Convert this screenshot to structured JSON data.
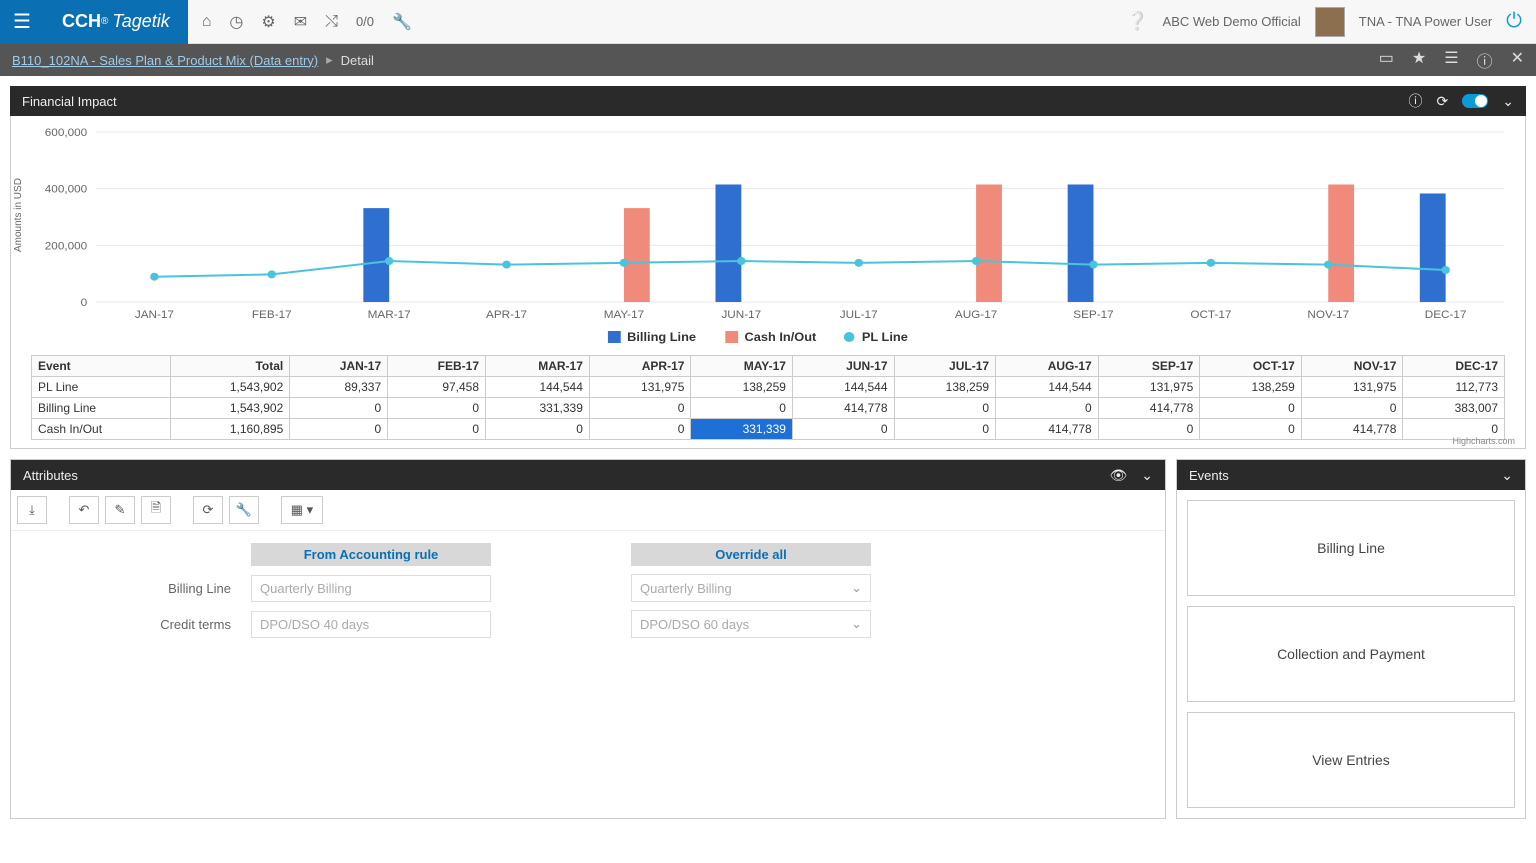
{
  "logo": {
    "brand_prefix": "CCH",
    "brand_suffix": "Tagetik",
    "reg": "®"
  },
  "topbar_counter": "0/0",
  "company": "ABC Web Demo Official",
  "user": "TNA - TNA Power User",
  "breadcrumb": {
    "link": "B110_102NA - Sales Plan & Product Mix (Data entry)",
    "current": "Detail"
  },
  "panels": {
    "financial": "Financial Impact",
    "attributes": "Attributes",
    "events": "Events"
  },
  "chart": {
    "type": "bar+line",
    "y_label": "Amounts in USD",
    "months": [
      "JAN-17",
      "FEB-17",
      "MAR-17",
      "APR-17",
      "MAY-17",
      "JUN-17",
      "JUL-17",
      "AUG-17",
      "SEP-17",
      "OCT-17",
      "NOV-17",
      "DEC-17"
    ],
    "ylim": [
      0,
      600000
    ],
    "ytick_step": 200000,
    "yticks": [
      "0",
      "200,000",
      "400,000",
      "600,000"
    ],
    "grid_color": "#e8e8e8",
    "colors": {
      "billing": "#2f6fd0",
      "cash": "#f08a7a",
      "pl": "#4ac3dc"
    },
    "billing_bar": [
      0,
      0,
      331339,
      0,
      0,
      414778,
      0,
      0,
      414778,
      0,
      0,
      383007
    ],
    "cash_bar": [
      0,
      0,
      0,
      0,
      331339,
      0,
      0,
      414778,
      0,
      0,
      414778,
      0
    ],
    "pl_line": [
      89337,
      97458,
      144544,
      131975,
      138259,
      144544,
      138259,
      144544,
      131975,
      138259,
      131975,
      112773
    ],
    "bar_width": 0.22,
    "legend": {
      "billing": "Billing Line",
      "cash": "Cash In/Out",
      "pl": "PL Line"
    },
    "credits": "Highcharts.com"
  },
  "table": {
    "corner": "Event",
    "total_hdr": "Total",
    "month_hdrs": [
      "JAN-17",
      "FEB-17",
      "MAR-17",
      "APR-17",
      "MAY-17",
      "JUN-17",
      "JUL-17",
      "AUG-17",
      "SEP-17",
      "OCT-17",
      "NOV-17",
      "DEC-17"
    ],
    "rows": [
      {
        "name": "PL Line",
        "total": "1,543,902",
        "cells": [
          "89,337",
          "97,458",
          "144,544",
          "131,975",
          "138,259",
          "144,544",
          "138,259",
          "144,544",
          "131,975",
          "138,259",
          "131,975",
          "112,773"
        ]
      },
      {
        "name": "Billing Line",
        "total": "1,543,902",
        "cells": [
          "0",
          "0",
          "331,339",
          "0",
          "0",
          "414,778",
          "0",
          "0",
          "414,778",
          "0",
          "0",
          "383,007"
        ]
      },
      {
        "name": "Cash In/Out",
        "total": "1,160,895",
        "cells": [
          "0",
          "0",
          "0",
          "0",
          "331,339",
          "0",
          "0",
          "414,778",
          "0",
          "0",
          "414,778",
          "0"
        ]
      }
    ],
    "selected": {
      "row": 2,
      "col": 4
    }
  },
  "attributes": {
    "col1": "From Accounting rule",
    "col2": "Override all",
    "rows": [
      {
        "label": "Billing Line",
        "rule": "Quarterly Billing",
        "override": "Quarterly Billing"
      },
      {
        "label": "Credit terms",
        "rule": "DPO/DSO 40 days",
        "override": "DPO/DSO 60 days"
      }
    ]
  },
  "events": [
    "Billing Line",
    "Collection and Payment",
    "View Entries"
  ]
}
